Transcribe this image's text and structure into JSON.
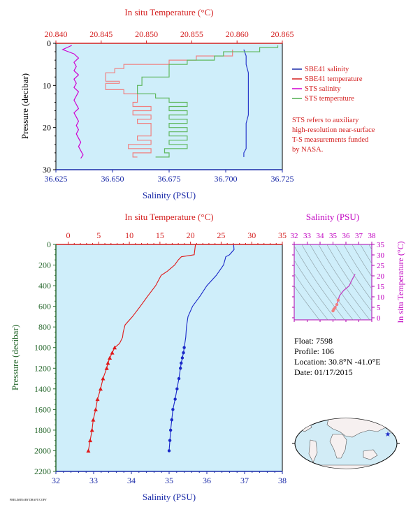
{
  "chart_data": [
    {
      "type": "line",
      "panel": "top-left",
      "title": "",
      "xlabel_top": "In situ Temperature (°C)",
      "xlabel_bottom": "Salinity (PSU)",
      "ylabel": "Pressure (decibar)",
      "temperature_lim": [
        20.84,
        20.865
      ],
      "salinity_lim": [
        36.625,
        36.725
      ],
      "pressure_lim": [
        30,
        0
      ],
      "temperature_ticks": [
        "20.840",
        "20.845",
        "20.850",
        "20.855",
        "20.860",
        "20.865"
      ],
      "salinity_ticks": [
        "36.625",
        "36.650",
        "36.675",
        "36.700",
        "36.725"
      ],
      "pressure_ticks": [
        "0",
        "10",
        "20",
        "30"
      ],
      "legend_position": "right",
      "legend": [
        {
          "label": "SBE41 salinity",
          "color": "#1a2aa8"
        },
        {
          "label": "SBE41 temperature",
          "color": "#d42020"
        },
        {
          "label": "STS salinity",
          "color": "#d000d0"
        },
        {
          "label": "STS temperature",
          "color": "#4fae4f"
        }
      ],
      "note": [
        "STS refers to auxiliary",
        "high-resolution near-surface",
        "T-S measurements funded",
        "by NASA."
      ],
      "series": [
        {
          "name": "SBE41 salinity",
          "axis": "salinity",
          "color": "#2a3acc",
          "pressure": [
            1.5,
            3,
            5,
            7,
            9,
            11,
            13,
            15,
            17,
            19,
            21,
            23,
            25,
            26,
            27
          ],
          "values": [
            36.708,
            36.709,
            36.709,
            36.71,
            36.71,
            36.71,
            36.71,
            36.71,
            36.71,
            36.709,
            36.709,
            36.709,
            36.709,
            36.708,
            36.708
          ]
        },
        {
          "name": "SBE41 temperature",
          "axis": "temperature",
          "color": "#f08080",
          "pressure": [
            1.5,
            3,
            4,
            5,
            6,
            6.5,
            7,
            8,
            9,
            9.5,
            10,
            11,
            12,
            14,
            15,
            16,
            17,
            18,
            19,
            20,
            21,
            22,
            23,
            24,
            25,
            26,
            27
          ],
          "values": [
            20.8595,
            20.8555,
            20.8525,
            20.8475,
            20.8465,
            20.8465,
            20.8455,
            20.8455,
            20.847,
            20.8455,
            20.8455,
            20.8475,
            20.849,
            20.8485,
            20.8505,
            20.8485,
            20.8505,
            20.849,
            20.8505,
            20.8505,
            20.8505,
            20.849,
            20.8505,
            20.848,
            20.8505,
            20.8485,
            20.849
          ]
        },
        {
          "name": "STS salinity",
          "axis": "salinity",
          "color": "#d000d0",
          "pressure": [
            0.5,
            1.5,
            2.5,
            3.5,
            4.5,
            5.5,
            6.5,
            7.5,
            8.5,
            9.5,
            10.5,
            11.5,
            12.5,
            13.5,
            14.5,
            15.5,
            16.5,
            17.5,
            18.5,
            19.5,
            20.5,
            21.5,
            22.5,
            23.5,
            24.5,
            25.5,
            26.5,
            27.3
          ],
          "values": [
            36.632,
            36.628,
            36.633,
            36.635,
            36.633,
            36.634,
            36.633,
            36.635,
            36.633,
            36.634,
            36.633,
            36.635,
            36.634,
            36.633,
            36.634,
            36.635,
            36.633,
            36.634,
            36.635,
            36.634,
            36.635,
            36.634,
            36.635,
            36.636,
            36.635,
            36.636,
            36.637,
            36.636
          ]
        },
        {
          "name": "STS temperature",
          "axis": "temperature",
          "color": "#60b860",
          "pressure": [
            0.5,
            1,
            2,
            3,
            4,
            5,
            6,
            7,
            8,
            9,
            10,
            11,
            12,
            13,
            14,
            15,
            16,
            17,
            18,
            19,
            20,
            21,
            22,
            23,
            24,
            25,
            26,
            27
          ],
          "values": [
            20.8645,
            20.8625,
            20.8585,
            20.8575,
            20.8545,
            20.8525,
            20.8525,
            20.8525,
            20.8495,
            20.8495,
            20.849,
            20.849,
            20.851,
            20.8525,
            20.8545,
            20.8525,
            20.8545,
            20.8525,
            20.8545,
            20.8525,
            20.8545,
            20.8525,
            20.8545,
            20.8525,
            20.8545,
            20.852,
            20.8525,
            20.851
          ]
        }
      ]
    },
    {
      "type": "line",
      "panel": "bottom-left",
      "title": "",
      "xlabel_top": "In situ Temperature (°C)",
      "xlabel_bottom": "Salinity (PSU)",
      "ylabel": "Pressure (decibar)",
      "temperature_lim": [
        -2,
        35
      ],
      "salinity_lim": [
        32,
        38
      ],
      "pressure_lim": [
        2200,
        0
      ],
      "temperature_ticks": [
        "0",
        "5",
        "10",
        "15",
        "20",
        "25",
        "30",
        "35"
      ],
      "salinity_ticks": [
        "32",
        "33",
        "34",
        "35",
        "36",
        "37",
        "38"
      ],
      "pressure_ticks": [
        "0",
        "200",
        "400",
        "600",
        "800",
        "1000",
        "1200",
        "1400",
        "1600",
        "1800",
        "2000",
        "2200"
      ],
      "series": [
        {
          "name": "Temperature",
          "axis": "temperature",
          "color": "#e01818",
          "pressure": [
            0,
            100,
            120,
            150,
            200,
            260,
            300,
            400,
            500,
            600,
            700,
            780,
            850,
            900,
            960,
            1000,
            1050,
            1100,
            1150,
            1200,
            1300,
            1400,
            1500,
            1600,
            1700,
            1800,
            1900,
            2000
          ],
          "values": [
            20.8,
            20.6,
            18.5,
            18.0,
            17.4,
            16.2,
            15.2,
            14.3,
            13.0,
            11.8,
            10.5,
            9.3,
            9.0,
            8.9,
            8.4,
            7.6,
            7.2,
            6.8,
            6.5,
            6.3,
            5.7,
            5.3,
            4.8,
            4.5,
            4.1,
            3.9,
            3.6,
            3.3
          ],
          "markers": "triangles below 1000 dbar"
        },
        {
          "name": "Salinity",
          "axis": "salinity",
          "color": "#1a28c8",
          "pressure": [
            0,
            50,
            100,
            120,
            150,
            200,
            300,
            400,
            500,
            600,
            700,
            800,
            900,
            1000,
            1050,
            1100,
            1150,
            1200,
            1300,
            1400,
            1500,
            1600,
            1700,
            1800,
            1900,
            2000
          ],
          "values": [
            36.71,
            36.72,
            36.6,
            36.5,
            36.48,
            36.44,
            36.25,
            36.0,
            35.82,
            35.62,
            35.5,
            35.46,
            35.44,
            35.4,
            35.38,
            35.35,
            35.32,
            35.3,
            35.26,
            35.21,
            35.16,
            35.1,
            35.07,
            35.04,
            35.02,
            35.0
          ],
          "markers": "dots below 1000 dbar"
        }
      ]
    },
    {
      "type": "scatter",
      "panel": "ts-diagram",
      "title": "",
      "xlabel": "Salinity (PSU)",
      "ylabel": "In situ Temperature (°C)",
      "xlim": [
        32,
        38
      ],
      "ylim": [
        -1,
        35
      ],
      "xticks": [
        "32",
        "33",
        "34",
        "35",
        "36",
        "37",
        "38"
      ],
      "yticks": [
        "0",
        "5",
        "10",
        "15",
        "20",
        "25",
        "30",
        "35"
      ],
      "series": [
        {
          "name": "profile",
          "color": "#c040c0",
          "x": [
            36.71,
            36.5,
            36.25,
            35.82,
            35.5,
            35.4,
            35.3,
            35.16,
            35.07,
            35.0
          ],
          "y": [
            20.8,
            18.5,
            15.2,
            13.0,
            10.5,
            8.4,
            6.3,
            4.8,
            4.1,
            3.3
          ]
        }
      ]
    }
  ],
  "info": {
    "float": "Float:  7598",
    "profile": "Profile:  106",
    "location": "Location:  30.8°N  -41.0°E",
    "date": "Date:  01/17/2015"
  },
  "map": {
    "marker_lat": 30.8,
    "marker_lon": -41.0,
    "ocean_color": "#d2ecf6",
    "land_color": "#f6f0f0",
    "marker_color": "#1a28c8"
  },
  "footer": {
    "id_text": "PRELIMINARY DRAFT/COPY"
  },
  "colors": {
    "plot_bg": "#cfeefa",
    "red": "#d42020",
    "blue": "#1a2aa8",
    "magenta": "#c000c0",
    "green_axis": "#2a6a30"
  }
}
